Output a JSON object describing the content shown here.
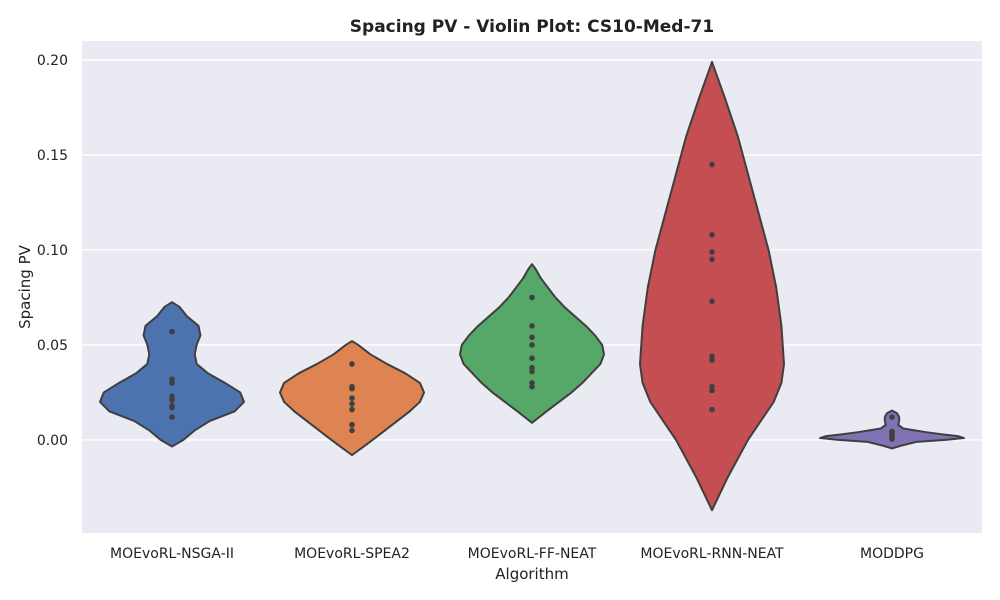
{
  "chart_data": {
    "type": "violin",
    "title": "Spacing PV - Violin Plot: CS10-Med-71",
    "xlabel": "Algorithm",
    "ylabel": "Spacing PV",
    "ylim": [
      -0.049,
      0.21
    ],
    "yticks": [
      0.0,
      0.05,
      0.1,
      0.15,
      0.2
    ],
    "ytick_labels": [
      "0.00",
      "0.05",
      "0.10",
      "0.15",
      "0.20"
    ],
    "grid": true,
    "categories": [
      "MOEvoRL-NSGA-II",
      "MOEvoRL-SPEA2",
      "MOEvoRL-FF-NEAT",
      "MOEvoRL-RNN-NEAT",
      "MODDPG"
    ],
    "series": [
      {
        "color": "#4c72b0",
        "points": [
          0.012,
          0.017,
          0.018,
          0.021,
          0.023,
          0.03,
          0.032,
          0.057
        ],
        "density_profile": [
          [
            -0.0035,
            0.0
          ],
          [
            0.0,
            0.06
          ],
          [
            0.005,
            0.12
          ],
          [
            0.01,
            0.2
          ],
          [
            0.015,
            0.33
          ],
          [
            0.02,
            0.38
          ],
          [
            0.025,
            0.36
          ],
          [
            0.03,
            0.28
          ],
          [
            0.035,
            0.19
          ],
          [
            0.04,
            0.13
          ],
          [
            0.045,
            0.12
          ],
          [
            0.05,
            0.13
          ],
          [
            0.055,
            0.15
          ],
          [
            0.06,
            0.14
          ],
          [
            0.065,
            0.08
          ],
          [
            0.07,
            0.04
          ],
          [
            0.0725,
            0.0
          ]
        ]
      },
      {
        "color": "#dd8452",
        "points": [
          0.005,
          0.008,
          0.016,
          0.019,
          0.022,
          0.027,
          0.028,
          0.04
        ],
        "density_profile": [
          [
            -0.008,
            0.0
          ],
          [
            -0.004,
            0.05
          ],
          [
            0.0,
            0.1
          ],
          [
            0.005,
            0.16
          ],
          [
            0.01,
            0.22
          ],
          [
            0.015,
            0.28
          ],
          [
            0.02,
            0.33
          ],
          [
            0.025,
            0.35
          ],
          [
            0.03,
            0.33
          ],
          [
            0.035,
            0.26
          ],
          [
            0.04,
            0.17
          ],
          [
            0.045,
            0.09
          ],
          [
            0.05,
            0.03
          ],
          [
            0.052,
            0.0
          ]
        ]
      },
      {
        "color": "#55a868",
        "points": [
          0.028,
          0.03,
          0.036,
          0.038,
          0.043,
          0.05,
          0.054,
          0.06,
          0.075
        ],
        "density_profile": [
          [
            0.009,
            0.0
          ],
          [
            0.015,
            0.08
          ],
          [
            0.02,
            0.15
          ],
          [
            0.025,
            0.22
          ],
          [
            0.03,
            0.28
          ],
          [
            0.035,
            0.33
          ],
          [
            0.04,
            0.38
          ],
          [
            0.045,
            0.4
          ],
          [
            0.05,
            0.39
          ],
          [
            0.055,
            0.35
          ],
          [
            0.06,
            0.3
          ],
          [
            0.065,
            0.24
          ],
          [
            0.07,
            0.18
          ],
          [
            0.075,
            0.13
          ],
          [
            0.08,
            0.09
          ],
          [
            0.085,
            0.05
          ],
          [
            0.09,
            0.02
          ],
          [
            0.0925,
            0.0
          ]
        ]
      },
      {
        "color": "#c44e52",
        "points": [
          0.016,
          0.026,
          0.028,
          0.042,
          0.044,
          0.073,
          0.095,
          0.099,
          0.108,
          0.145
        ],
        "density_profile": [
          [
            -0.037,
            0.0
          ],
          [
            -0.02,
            0.06
          ],
          [
            0.0,
            0.14
          ],
          [
            0.02,
            0.24
          ],
          [
            0.03,
            0.27
          ],
          [
            0.04,
            0.28
          ],
          [
            0.06,
            0.27
          ],
          [
            0.08,
            0.25
          ],
          [
            0.1,
            0.22
          ],
          [
            0.12,
            0.18
          ],
          [
            0.14,
            0.14
          ],
          [
            0.16,
            0.1
          ],
          [
            0.18,
            0.05
          ],
          [
            0.199,
            0.0
          ]
        ]
      },
      {
        "color": "#8172b3",
        "points": [
          0.0005,
          0.0015,
          0.0025,
          0.0035,
          0.0045,
          0.012
        ],
        "density_profile": [
          [
            -0.0045,
            0.0
          ],
          [
            -0.003,
            0.45
          ],
          [
            -0.001,
            1.2
          ],
          [
            0.0,
            2.6
          ],
          [
            0.001,
            3.5
          ],
          [
            0.002,
            3.2
          ],
          [
            0.003,
            2.4
          ],
          [
            0.004,
            1.7
          ],
          [
            0.005,
            1.1
          ],
          [
            0.006,
            0.55
          ],
          [
            0.008,
            0.3
          ],
          [
            0.01,
            0.35
          ],
          [
            0.012,
            0.35
          ],
          [
            0.014,
            0.25
          ],
          [
            0.0155,
            0.0
          ]
        ]
      }
    ]
  }
}
